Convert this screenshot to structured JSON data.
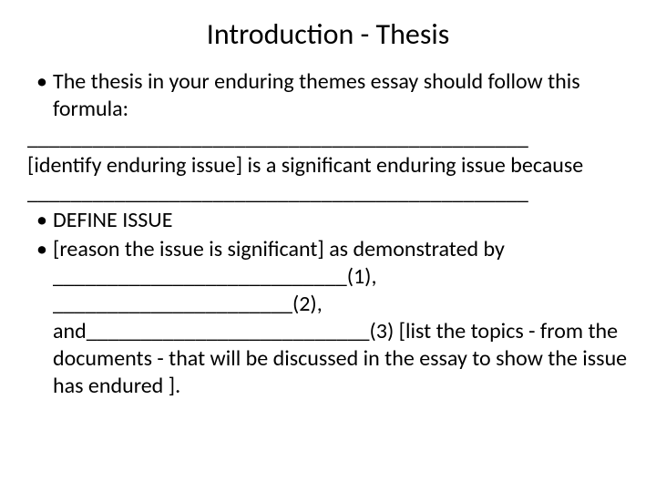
{
  "title": "Introduction - Thesis",
  "bullet1": "The thesis in your enduring themes essay should follow this formula:",
  "line_blank1": "______________________________________________",
  "line_identify": "[identify enduring issue] is a significant enduring issue because",
  "line_blank2": "______________________________________________",
  "bullet2": "DEFINE ISSUE",
  "bullet3_lead": "[reason the issue is significant] as demonstrated by",
  "demo_line1": "___________________________(1),",
  "demo_line2": "______________________(2),",
  "demo_line3": "and__________________________(3)  [list the topics - from the documents -  that will be discussed in the essay to show the issue has endured ].",
  "colors": {
    "text": "#000000",
    "background": "#ffffff"
  },
  "fontsize": {
    "title": 32,
    "body": 24
  }
}
